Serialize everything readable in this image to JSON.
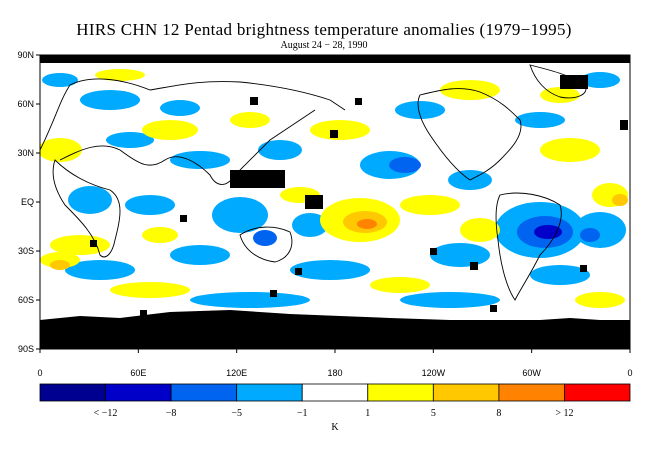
{
  "title": "HIRS CHN 12 Pentad brightness temperature anomalies (1979−1995)",
  "subtitle": "August 24 − 28, 1990",
  "map": {
    "lat_labels": [
      "90N",
      "60N",
      "30N",
      "EQ",
      "30S",
      "60S",
      "90S"
    ],
    "lon_labels": [
      "0",
      "60E",
      "120E",
      "180",
      "120W",
      "60W",
      "0"
    ],
    "colors": {
      "missing": "#000000",
      "coast": "#000000"
    }
  },
  "colorbar": {
    "unit": "K",
    "bins": [
      {
        "color": "#000090"
      },
      {
        "color": "#0000c8"
      },
      {
        "color": "#0064f0"
      },
      {
        "color": "#00aaff"
      },
      {
        "color": "#ffffff"
      },
      {
        "color": "#ffff00"
      },
      {
        "color": "#ffc800"
      },
      {
        "color": "#ff8200"
      },
      {
        "color": "#ff0000"
      }
    ],
    "labels": [
      "< −12",
      "−8",
      "−5",
      "−1",
      "1",
      "5",
      "8",
      "> 12"
    ]
  }
}
